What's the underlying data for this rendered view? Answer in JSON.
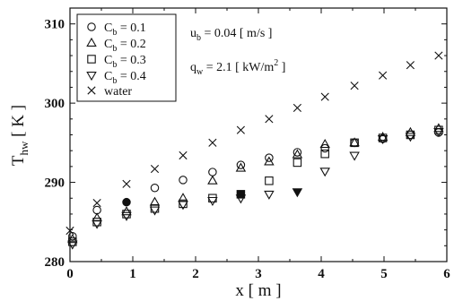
{
  "chart_data": {
    "type": "scatter",
    "xlabel": "x [ m ]",
    "ylabel": "T_hw [ K ]",
    "xlim": [
      0,
      6
    ],
    "ylim": [
      280,
      312
    ],
    "x_ticks": [
      0,
      1,
      2,
      3,
      4,
      5,
      6
    ],
    "y_ticks": [
      280,
      290,
      300,
      310
    ],
    "grid": false,
    "legend_position": "top-left",
    "annotations": {
      "ub": "u_b = 0.04 [ m/s ]",
      "qw": "q_w = 2.1 [ kW/m^2 ]"
    },
    "series": [
      {
        "name": "C_b = 0.1",
        "marker": "circle",
        "points": [
          [
            0.04,
            283.2
          ],
          [
            0.43,
            286.5
          ],
          [
            0.9,
            287.5
          ],
          [
            1.35,
            289.3
          ],
          [
            1.8,
            290.3
          ],
          [
            2.27,
            291.3
          ],
          [
            2.72,
            292.2
          ],
          [
            3.17,
            293.1
          ],
          [
            3.62,
            293.8
          ],
          [
            4.06,
            294.3
          ],
          [
            4.53,
            295.0
          ],
          [
            4.98,
            295.5
          ],
          [
            5.42,
            296.0
          ],
          [
            5.87,
            296.3
          ]
        ],
        "filled_points": [
          2
        ]
      },
      {
        "name": "C_b = 0.2",
        "marker": "triangle-up",
        "points": [
          [
            0.04,
            282.8
          ],
          [
            0.43,
            285.5
          ],
          [
            0.9,
            286.3
          ],
          [
            1.35,
            287.5
          ],
          [
            1.8,
            288.0
          ],
          [
            2.27,
            290.2
          ],
          [
            2.72,
            291.8
          ],
          [
            3.17,
            292.6
          ],
          [
            3.62,
            293.5
          ],
          [
            4.06,
            294.8
          ],
          [
            4.53,
            295.0
          ],
          [
            4.98,
            295.7
          ],
          [
            5.42,
            296.3
          ],
          [
            5.87,
            296.8
          ]
        ]
      },
      {
        "name": "C_b = 0.3",
        "marker": "square",
        "points": [
          [
            0.04,
            282.5
          ],
          [
            0.43,
            285.0
          ],
          [
            0.9,
            286.0
          ],
          [
            1.35,
            286.7
          ],
          [
            1.8,
            287.3
          ],
          [
            2.27,
            288.0
          ],
          [
            2.72,
            288.5
          ],
          [
            3.17,
            290.2
          ],
          [
            3.62,
            292.5
          ],
          [
            4.06,
            293.6
          ],
          [
            4.53,
            295.0
          ],
          [
            4.98,
            295.6
          ],
          [
            5.42,
            296.0
          ],
          [
            5.87,
            296.6
          ]
        ],
        "filled_points": [
          6
        ]
      },
      {
        "name": "C_b = 0.4",
        "marker": "triangle-down",
        "points": [
          [
            0.04,
            282.2
          ],
          [
            0.43,
            284.8
          ],
          [
            0.9,
            285.8
          ],
          [
            1.35,
            286.5
          ],
          [
            1.8,
            287.2
          ],
          [
            2.27,
            287.7
          ],
          [
            2.72,
            288.0
          ],
          [
            3.17,
            288.5
          ],
          [
            3.62,
            288.8
          ],
          [
            4.06,
            291.4
          ],
          [
            4.53,
            293.4
          ],
          [
            4.98,
            295.5
          ],
          [
            5.42,
            295.8
          ],
          [
            5.87,
            296.4
          ]
        ],
        "filled_points": [
          8
        ]
      },
      {
        "name": "water",
        "marker": "x",
        "points": [
          [
            0.0,
            283.9
          ],
          [
            0.43,
            287.4
          ],
          [
            0.9,
            289.8
          ],
          [
            1.35,
            291.7
          ],
          [
            1.8,
            293.4
          ],
          [
            2.27,
            295.0
          ],
          [
            2.72,
            296.6
          ],
          [
            3.17,
            298.0
          ],
          [
            3.62,
            299.4
          ],
          [
            4.06,
            300.8
          ],
          [
            4.53,
            302.2
          ],
          [
            4.98,
            303.5
          ],
          [
            5.42,
            304.8
          ],
          [
            5.87,
            306.0
          ]
        ]
      }
    ]
  }
}
